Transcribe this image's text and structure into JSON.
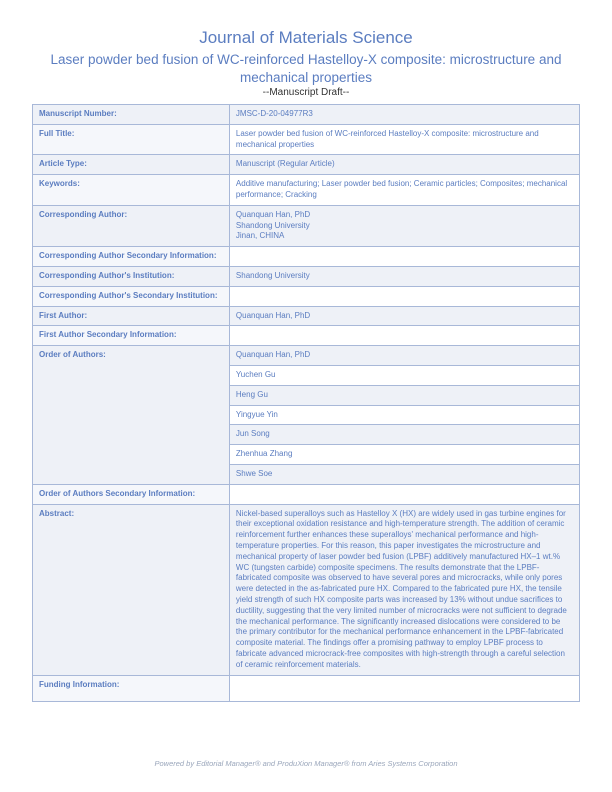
{
  "header": {
    "journal_title": "Journal of Materials Science",
    "paper_title": "Laser powder bed fusion of WC-reinforced Hastelloy-X composite: microstructure and mechanical properties",
    "draft_label": "--Manuscript Draft--"
  },
  "rows": [
    {
      "label": "Manuscript Number:",
      "value": "JMSC-D-20-04977R3",
      "shaded": true
    },
    {
      "label": "Full Title:",
      "value": "Laser powder bed fusion of WC-reinforced Hastelloy-X composite: microstructure and mechanical properties",
      "shaded": false
    },
    {
      "label": "Article Type:",
      "value": "Manuscript (Regular Article)",
      "shaded": true
    },
    {
      "label": "Keywords:",
      "value": "Additive manufacturing;  Laser powder bed fusion;  Ceramic particles;  Composites;  mechanical performance;  Cracking",
      "shaded": false
    },
    {
      "label": "Corresponding Author:",
      "value": "Quanquan Han, PhD\nShandong University\nJinan, CHINA",
      "shaded": true
    },
    {
      "label": "Corresponding Author Secondary Information:",
      "value": "",
      "shaded": false
    },
    {
      "label": "Corresponding Author's Institution:",
      "value": "Shandong University",
      "shaded": true
    },
    {
      "label": "Corresponding Author's Secondary Institution:",
      "value": "",
      "shaded": false
    },
    {
      "label": "First Author:",
      "value": "Quanquan Han, PhD",
      "shaded": true
    },
    {
      "label": "First Author Secondary Information:",
      "value": "",
      "shaded": false
    }
  ],
  "authors_label": "Order of Authors:",
  "authors": [
    "Quanquan Han, PhD",
    "Yuchen Gu",
    "Heng Gu",
    "Yingyue Yin",
    "Jun Song",
    "Zhenhua Zhang",
    "Shwe Soe"
  ],
  "authors_shaded_first": true,
  "after_authors": [
    {
      "label": "Order of Authors Secondary Information:",
      "value": "",
      "shaded": false
    },
    {
      "label": "Abstract:",
      "value": "Nickel-based superalloys such as Hastelloy X (HX) are widely used in gas turbine engines for their exceptional oxidation resistance and high-temperature strength. The addition of ceramic reinforcement further enhances these superalloys' mechanical performance and high-temperature properties. For this reason, this paper investigates the microstructure and mechanical property of laser powder bed fusion (LPBF) additively manufactured HX–1 wt.% WC (tungsten carbide) composite specimens. The results demonstrate that the LPBF-fabricated composite was observed to have several pores and microcracks, while only pores were detected in the as-fabricated pure HX. Compared to the fabricated pure HX, the tensile yield strength of such HX composite parts was increased by 13% without undue sacrifices to ductility, suggesting that the very limited number of microcracks were not sufficient to degrade the mechanical performance.  The significantly increased dislocations were considered to be the primary contributor for the mechanical performance enhancement in the LPBF-fabricated composite material. The findings offer a promising pathway to employ LPBF process to fabricate advanced microcrack-free composites with high-strength through a careful selection of ceramic reinforcement materials.",
      "shaded": true
    },
    {
      "label": "Funding Information:",
      "value": "",
      "shaded": false,
      "tall": true
    }
  ],
  "footer": "Powered by Editorial Manager® and ProduXion Manager® from Aries Systems Corporation"
}
